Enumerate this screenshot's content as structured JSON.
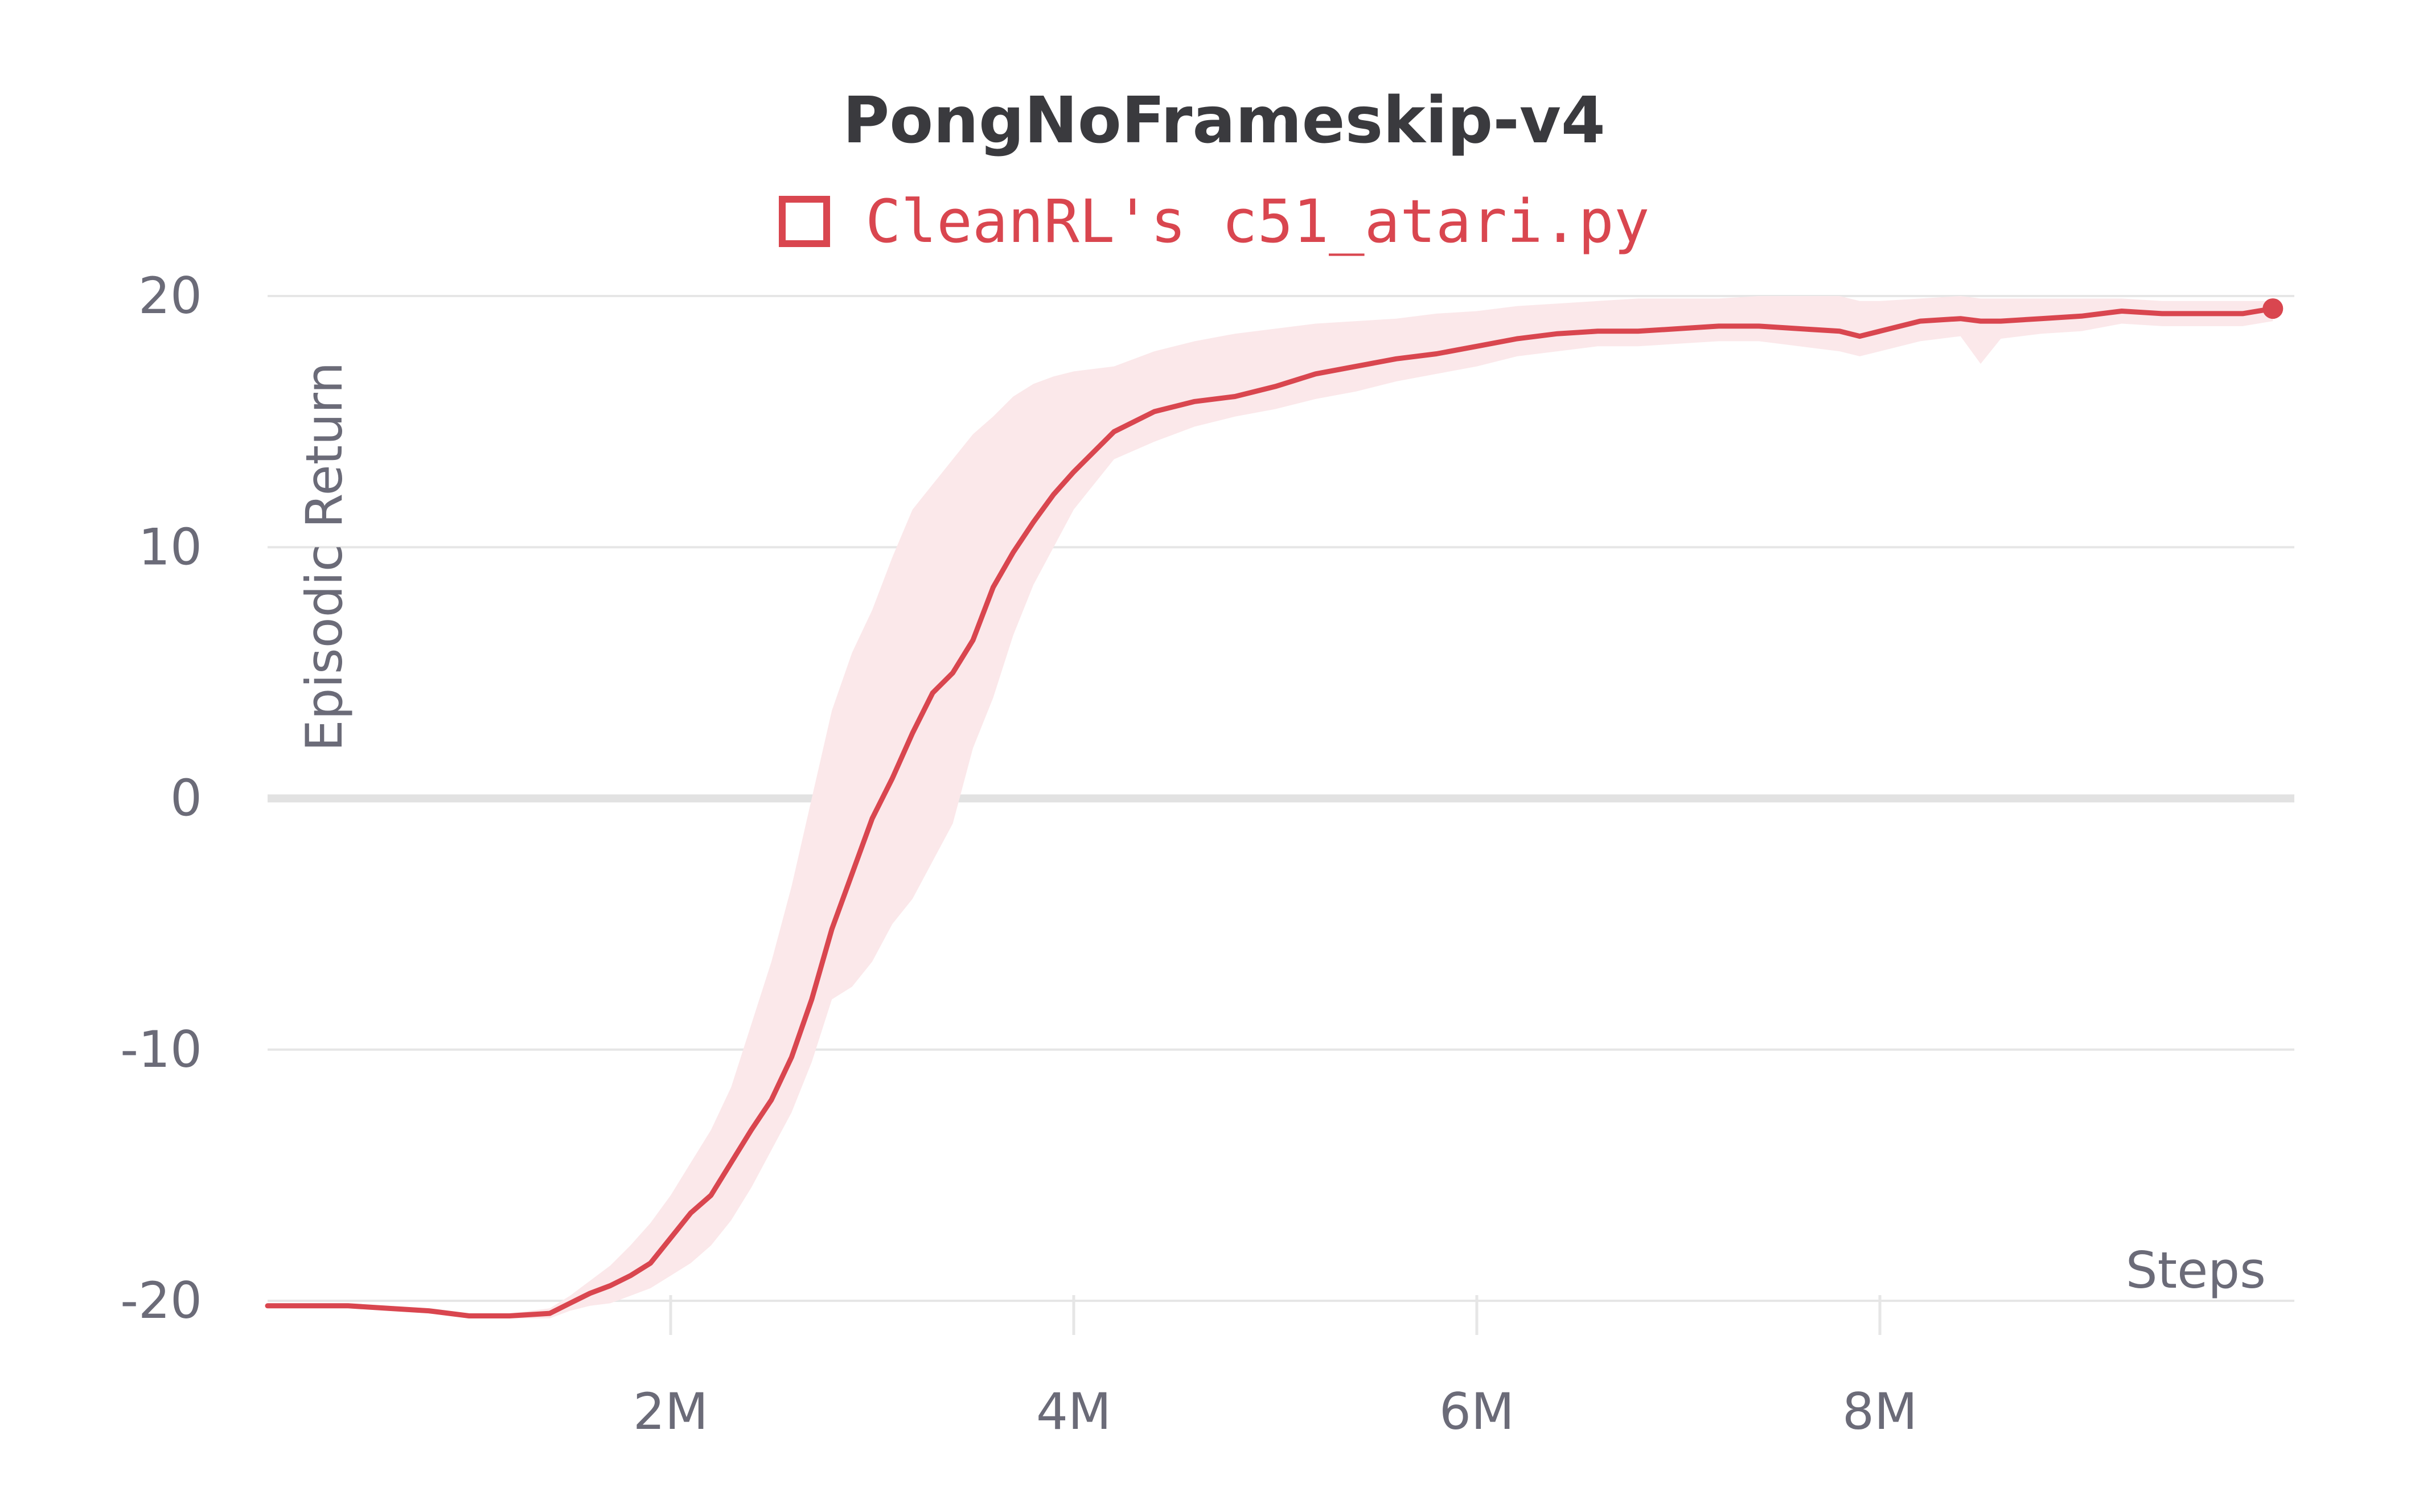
{
  "colors": {
    "series": "#d9464f",
    "band": "#fbe8ea",
    "grid": "#e6e6e6",
    "zero_line": "#e2e2e2",
    "text": "#6b6b78",
    "title": "#3a3a3e"
  },
  "chart_data": {
    "type": "line",
    "title": "PongNoFrameskip-v4",
    "xlabel": "Steps",
    "ylabel": "Episodic Return",
    "xlim": [
      0,
      10000000
    ],
    "ylim": [
      -21.5,
      21.5
    ],
    "grid": true,
    "legend_position": "top-center",
    "x_ticks": [
      {
        "value": 2000000,
        "label": "2M"
      },
      {
        "value": 4000000,
        "label": "4M"
      },
      {
        "value": 6000000,
        "label": "6M"
      },
      {
        "value": 8000000,
        "label": "8M"
      }
    ],
    "y_ticks": [
      {
        "value": 20,
        "label": "20"
      },
      {
        "value": 10,
        "label": "10"
      },
      {
        "value": 0,
        "label": "0"
      },
      {
        "value": -10,
        "label": "-10"
      },
      {
        "value": -20,
        "label": "-20"
      }
    ],
    "series": [
      {
        "name": "CleanRL's c51_atari.py",
        "x": [
          0,
          200000,
          400000,
          600000,
          800000,
          1000000,
          1200000,
          1400000,
          1500000,
          1600000,
          1700000,
          1800000,
          1900000,
          2000000,
          2100000,
          2200000,
          2300000,
          2400000,
          2500000,
          2600000,
          2700000,
          2800000,
          2900000,
          3000000,
          3100000,
          3200000,
          3300000,
          3400000,
          3500000,
          3600000,
          3700000,
          3800000,
          3900000,
          4000000,
          4200000,
          4400000,
          4600000,
          4800000,
          5000000,
          5200000,
          5400000,
          5600000,
          5800000,
          6000000,
          6200000,
          6400000,
          6600000,
          6800000,
          7000000,
          7200000,
          7400000,
          7600000,
          7800000,
          7900000,
          8000000,
          8200000,
          8400000,
          8500000,
          8600000,
          8800000,
          9000000,
          9200000,
          9400000,
          9600000,
          9800000,
          9950000
        ],
        "y": [
          -20.2,
          -20.2,
          -20.2,
          -20.3,
          -20.4,
          -20.6,
          -20.6,
          -20.5,
          -20.1,
          -19.7,
          -19.4,
          -19.0,
          -18.5,
          -17.5,
          -16.5,
          -15.8,
          -14.5,
          -13.2,
          -12.0,
          -10.3,
          -8.0,
          -5.2,
          -3.0,
          -0.8,
          0.8,
          2.6,
          4.2,
          5.0,
          6.3,
          8.4,
          9.8,
          11.0,
          12.1,
          13.0,
          14.6,
          15.4,
          15.8,
          16.0,
          16.4,
          16.9,
          17.2,
          17.5,
          17.7,
          18.0,
          18.3,
          18.5,
          18.6,
          18.6,
          18.7,
          18.8,
          18.8,
          18.7,
          18.6,
          18.4,
          18.6,
          19.0,
          19.1,
          19.0,
          19.0,
          19.1,
          19.2,
          19.4,
          19.3,
          19.3,
          19.3,
          19.5
        ],
        "band_upper": [
          -20.1,
          -20.1,
          -20.1,
          -20.2,
          -20.3,
          -20.5,
          -20.5,
          -20.3,
          -19.8,
          -19.2,
          -18.6,
          -17.8,
          -16.9,
          -15.8,
          -14.5,
          -13.2,
          -11.5,
          -9.0,
          -6.5,
          -3.5,
          0.0,
          3.5,
          5.8,
          7.5,
          9.6,
          11.5,
          12.5,
          13.5,
          14.5,
          15.2,
          16.0,
          16.5,
          16.8,
          17.0,
          17.2,
          17.8,
          18.2,
          18.5,
          18.7,
          18.9,
          19.0,
          19.1,
          19.3,
          19.4,
          19.6,
          19.7,
          19.8,
          19.9,
          19.9,
          19.9,
          20.0,
          20.0,
          20.0,
          19.8,
          19.8,
          19.9,
          20.0,
          19.9,
          19.9,
          19.9,
          19.9,
          19.9,
          19.8,
          19.8,
          19.8,
          19.8
        ],
        "band_lower": [
          -20.3,
          -20.3,
          -20.3,
          -20.4,
          -20.5,
          -20.7,
          -20.7,
          -20.7,
          -20.4,
          -20.2,
          -20.1,
          -19.8,
          -19.5,
          -19.0,
          -18.5,
          -17.8,
          -16.8,
          -15.5,
          -14.0,
          -12.5,
          -10.5,
          -8.0,
          -7.5,
          -6.5,
          -5.0,
          -4.0,
          -2.5,
          -1.0,
          2.0,
          4.0,
          6.5,
          8.5,
          10.0,
          11.5,
          13.5,
          14.2,
          14.8,
          15.2,
          15.5,
          15.9,
          16.2,
          16.6,
          16.9,
          17.2,
          17.6,
          17.8,
          18.0,
          18.0,
          18.1,
          18.2,
          18.2,
          18.0,
          17.8,
          17.6,
          17.8,
          18.2,
          18.4,
          17.3,
          18.3,
          18.5,
          18.6,
          18.9,
          18.8,
          18.8,
          18.8,
          19.0
        ]
      }
    ]
  }
}
